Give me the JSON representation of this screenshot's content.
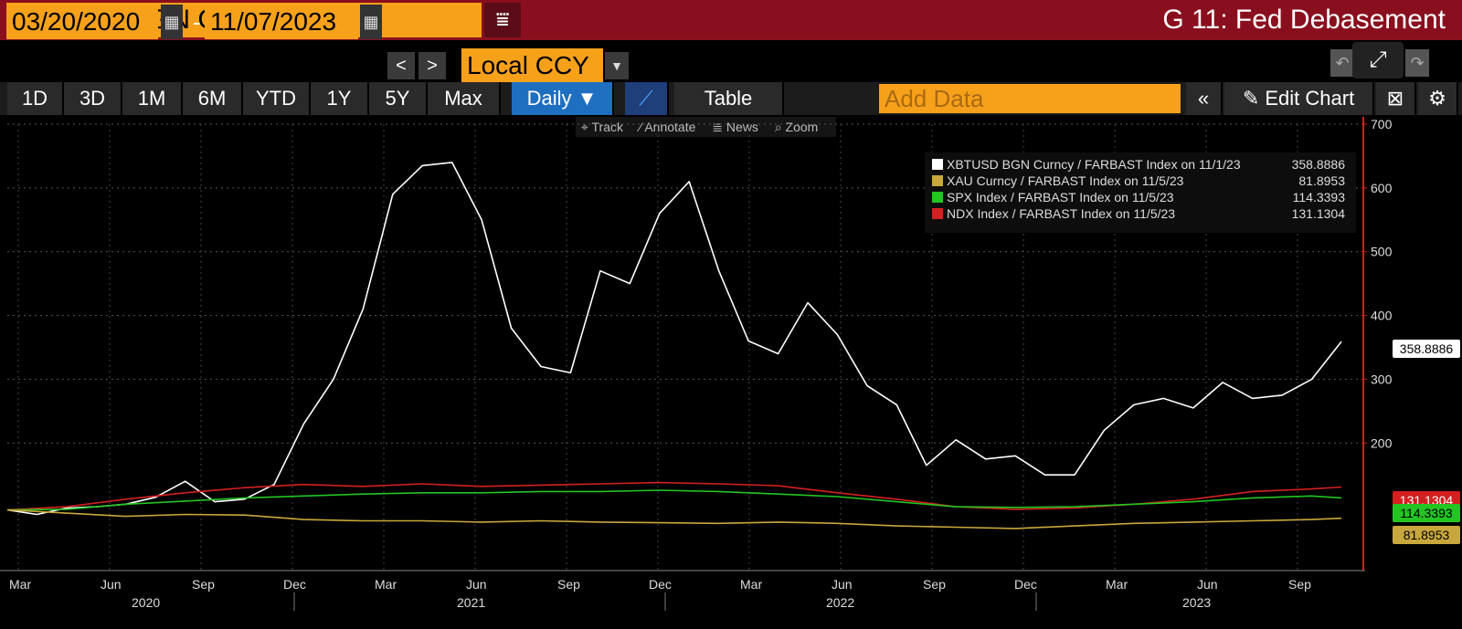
{
  "header": {
    "security": "XBTUSD BGN Curncy",
    "menu_icon": "menu-filter-icon",
    "chart_title": "G 11: Fed Debasement"
  },
  "date_controls": {
    "start_date": "03/20/2020",
    "end_date": "11/07/2023",
    "dash": "-",
    "currency": "Local CCY",
    "prev_label": "<",
    "next_label": ">",
    "calendar_icon": "calendar-icon"
  },
  "toolbar": {
    "periods": [
      "1D",
      "3D",
      "1M",
      "6M",
      "YTD",
      "1Y",
      "5Y",
      "Max"
    ],
    "frequency": "Daily ▼",
    "table_label": "Table",
    "add_data_placeholder": "Add Data",
    "back_label": "«",
    "edit_chart_label": "✎ Edit Chart",
    "chart_type_icon": "line-chart-icon",
    "settings_icon": "gear-icon"
  },
  "chart_tools": {
    "track": "⌖ Track",
    "annotate": "⁄ Annotate",
    "news": "≣ News",
    "zoom": "⌕ Zoom"
  },
  "colors": {
    "orange": "#f7a11b",
    "title_bar": "#8a0f1e",
    "xbt": "#ffffff",
    "xau": "#c8a83c",
    "spx": "#22c522",
    "ndx": "#d42020"
  },
  "chart_data": {
    "type": "line",
    "legend": [
      {
        "label": "XBTUSD BGN Curncy / FARBAST Index on 11/1/23",
        "value": "358.8886",
        "color": "#ffffff"
      },
      {
        "label": "XAU Curncy / FARBAST Index on 11/5/23",
        "value": "81.8953",
        "color": "#c8a83c"
      },
      {
        "label": "SPX Index / FARBAST Index on 11/5/23",
        "value": "114.3393",
        "color": "#22c522"
      },
      {
        "label": "NDX Index / FARBAST Index on 11/5/23",
        "value": "131.1304",
        "color": "#d42020"
      }
    ],
    "last_values": [
      "358.8886",
      "131.1304",
      "114.3393",
      "81.8953"
    ],
    "x_axis": {
      "months": [
        "Mar",
        "Jun",
        "Sep",
        "Dec",
        "Mar",
        "Jun",
        "Sep",
        "Dec",
        "Mar",
        "Jun",
        "Sep",
        "Dec",
        "Mar",
        "Jun",
        "Sep"
      ],
      "years": [
        "2020",
        "2021",
        "2022",
        "2023"
      ]
    },
    "y_axis": {
      "ticks": [
        "200",
        "300",
        "400",
        "500",
        "600",
        "700"
      ],
      "ylim": [
        0,
        700
      ]
    },
    "series": [
      {
        "name": "XBTUSD BGN Curncy / FARBAST Index",
        "color": "#ffffff",
        "values": [
          [
            0,
            95
          ],
          [
            1,
            88
          ],
          [
            2,
            98
          ],
          [
            3,
            100
          ],
          [
            4,
            104
          ],
          [
            5,
            115
          ],
          [
            6,
            140
          ],
          [
            7,
            108
          ],
          [
            8,
            112
          ],
          [
            9,
            135
          ],
          [
            10,
            230
          ],
          [
            11,
            300
          ],
          [
            12,
            410
          ],
          [
            13,
            590
          ],
          [
            14,
            635
          ],
          [
            15,
            640
          ],
          [
            16,
            550
          ],
          [
            17,
            380
          ],
          [
            18,
            320
          ],
          [
            19,
            310
          ],
          [
            20,
            470
          ],
          [
            21,
            450
          ],
          [
            22,
            560
          ],
          [
            23,
            610
          ],
          [
            24,
            470
          ],
          [
            25,
            360
          ],
          [
            26,
            340
          ],
          [
            27,
            420
          ],
          [
            28,
            370
          ],
          [
            29,
            290
          ],
          [
            30,
            260
          ],
          [
            31,
            165
          ],
          [
            32,
            205
          ],
          [
            33,
            175
          ],
          [
            34,
            180
          ],
          [
            35,
            150
          ],
          [
            36,
            150
          ],
          [
            37,
            220
          ],
          [
            38,
            260
          ],
          [
            39,
            270
          ],
          [
            40,
            255
          ],
          [
            41,
            295
          ],
          [
            42,
            270
          ],
          [
            43,
            275
          ],
          [
            44,
            300
          ],
          [
            45,
            359
          ]
        ]
      },
      {
        "name": "NDX Index / FARBAST Index",
        "color": "#d42020",
        "values": [
          [
            0,
            95
          ],
          [
            2,
            100
          ],
          [
            4,
            112
          ],
          [
            6,
            122
          ],
          [
            8,
            130
          ],
          [
            10,
            135
          ],
          [
            12,
            132
          ],
          [
            14,
            136
          ],
          [
            16,
            132
          ],
          [
            18,
            134
          ],
          [
            20,
            136
          ],
          [
            22,
            138
          ],
          [
            24,
            136
          ],
          [
            26,
            133
          ],
          [
            28,
            122
          ],
          [
            30,
            112
          ],
          [
            32,
            100
          ],
          [
            34,
            96
          ],
          [
            36,
            98
          ],
          [
            38,
            104
          ],
          [
            40,
            112
          ],
          [
            42,
            124
          ],
          [
            44,
            128
          ],
          [
            45,
            131
          ]
        ]
      },
      {
        "name": "SPX Index / FARBAST Index",
        "color": "#22c522",
        "values": [
          [
            0,
            95
          ],
          [
            2,
            96
          ],
          [
            4,
            104
          ],
          [
            6,
            109
          ],
          [
            8,
            114
          ],
          [
            10,
            117
          ],
          [
            12,
            120
          ],
          [
            14,
            122
          ],
          [
            16,
            122
          ],
          [
            18,
            124
          ],
          [
            20,
            124
          ],
          [
            22,
            126
          ],
          [
            24,
            124
          ],
          [
            26,
            120
          ],
          [
            28,
            116
          ],
          [
            30,
            108
          ],
          [
            32,
            100
          ],
          [
            34,
            99
          ],
          [
            36,
            100
          ],
          [
            38,
            104
          ],
          [
            40,
            108
          ],
          [
            42,
            114
          ],
          [
            44,
            117
          ],
          [
            45,
            114
          ]
        ]
      },
      {
        "name": "XAU Curncy / FARBAST Index",
        "color": "#c8a83c",
        "values": [
          [
            0,
            95
          ],
          [
            2,
            90
          ],
          [
            4,
            85
          ],
          [
            6,
            88
          ],
          [
            8,
            87
          ],
          [
            10,
            80
          ],
          [
            12,
            78
          ],
          [
            14,
            78
          ],
          [
            16,
            76
          ],
          [
            18,
            78
          ],
          [
            20,
            76
          ],
          [
            22,
            75
          ],
          [
            24,
            74
          ],
          [
            26,
            76
          ],
          [
            28,
            74
          ],
          [
            30,
            70
          ],
          [
            32,
            68
          ],
          [
            34,
            66
          ],
          [
            36,
            70
          ],
          [
            38,
            74
          ],
          [
            40,
            76
          ],
          [
            42,
            78
          ],
          [
            44,
            80
          ],
          [
            45,
            82
          ]
        ]
      }
    ]
  }
}
